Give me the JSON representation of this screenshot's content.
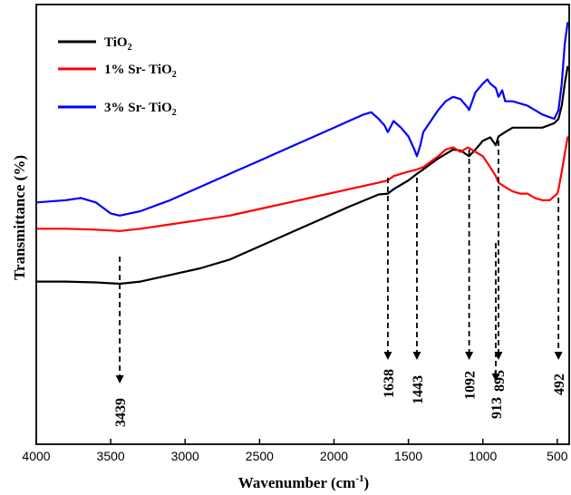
{
  "chart_data": {
    "type": "line",
    "title": "",
    "xlabel": "Wavenumber (cm",
    "xlabel_sup": "-1",
    "xlabel_suffix": ")",
    "ylabel": "Transmittance (%)",
    "xlim": [
      4000,
      420
    ],
    "x_reversed": true,
    "ylim": [
      0,
      100
    ],
    "x_ticks": [
      4000,
      3500,
      3000,
      2500,
      2000,
      1500,
      1000,
      500
    ],
    "grid": false,
    "legend_position": "top-left",
    "series": [
      {
        "name": "TiO",
        "name_sub": "2",
        "color": "#000000",
        "x": [
          4000,
          3800,
          3600,
          3439,
          3300,
          3100,
          2900,
          2700,
          2500,
          2300,
          2100,
          1900,
          1700,
          1638,
          1600,
          1500,
          1443,
          1400,
          1300,
          1200,
          1150,
          1092,
          1050,
          1000,
          950,
          913,
          895,
          850,
          800,
          700,
          600,
          520,
          492,
          470,
          450,
          430
        ],
        "y": [
          37,
          37,
          36.8,
          36.5,
          37,
          38.5,
          40,
          42,
          45,
          48,
          51,
          54,
          56.8,
          57,
          58,
          60,
          61.5,
          62.5,
          65,
          67,
          66.8,
          65.5,
          67,
          69,
          69.8,
          68,
          70,
          71,
          72,
          72,
          72,
          73,
          74,
          77,
          82,
          86
        ]
      },
      {
        "name": "1% Sr- TiO",
        "name_sub": "2",
        "color": "#ff0000",
        "x": [
          4000,
          3800,
          3600,
          3439,
          3300,
          3100,
          2900,
          2700,
          2500,
          2300,
          2100,
          1900,
          1700,
          1638,
          1600,
          1500,
          1443,
          1400,
          1300,
          1250,
          1200,
          1150,
          1100,
          1050,
          1000,
          950,
          913,
          895,
          850,
          800,
          750,
          700,
          650,
          600,
          550,
          500,
          492,
          470,
          450,
          430
        ],
        "y": [
          49,
          49,
          48.8,
          48.5,
          49,
          50,
          51,
          52,
          53.5,
          55,
          56.5,
          58,
          59.5,
          60,
          61,
          62,
          62.5,
          63,
          65.5,
          67,
          67.5,
          66.5,
          67.5,
          66.5,
          65.5,
          63,
          61,
          59.5,
          58.5,
          57.5,
          57,
          57,
          56,
          55.5,
          55.5,
          57,
          58,
          62,
          66,
          70
        ]
      },
      {
        "name": "3% Sr- TiO",
        "name_sub": "2",
        "color": "#0000ff",
        "x": [
          4000,
          3800,
          3700,
          3600,
          3500,
          3439,
          3300,
          3100,
          2900,
          2700,
          2500,
          2300,
          2100,
          1900,
          1800,
          1750,
          1700,
          1660,
          1638,
          1600,
          1550,
          1500,
          1460,
          1443,
          1420,
          1400,
          1300,
          1250,
          1200,
          1150,
          1100,
          1092,
          1050,
          1000,
          970,
          950,
          913,
          895,
          870,
          850,
          800,
          700,
          600,
          520,
          492,
          470,
          450,
          430
        ],
        "y": [
          55,
          55.5,
          56,
          55,
          52.5,
          52,
          53,
          55.5,
          58.5,
          61.5,
          64.5,
          67.5,
          70.5,
          73.5,
          75,
          75.5,
          74,
          72.5,
          71,
          73.5,
          72,
          70,
          67,
          65.5,
          68,
          71,
          76,
          78,
          79,
          78.5,
          76.5,
          76,
          80,
          82,
          83,
          82,
          81,
          79,
          80.5,
          78,
          78,
          77,
          75,
          74,
          76,
          82,
          91,
          96
        ]
      }
    ],
    "annotations": [
      {
        "label": "3439",
        "x": 3439
      },
      {
        "label": "1638",
        "x": 1638
      },
      {
        "label": "1443",
        "x": 1443
      },
      {
        "label": "1092",
        "x": 1092
      },
      {
        "label": "913",
        "x": 913
      },
      {
        "label": "895",
        "x": 895
      },
      {
        "label": "492",
        "x": 492
      }
    ]
  }
}
